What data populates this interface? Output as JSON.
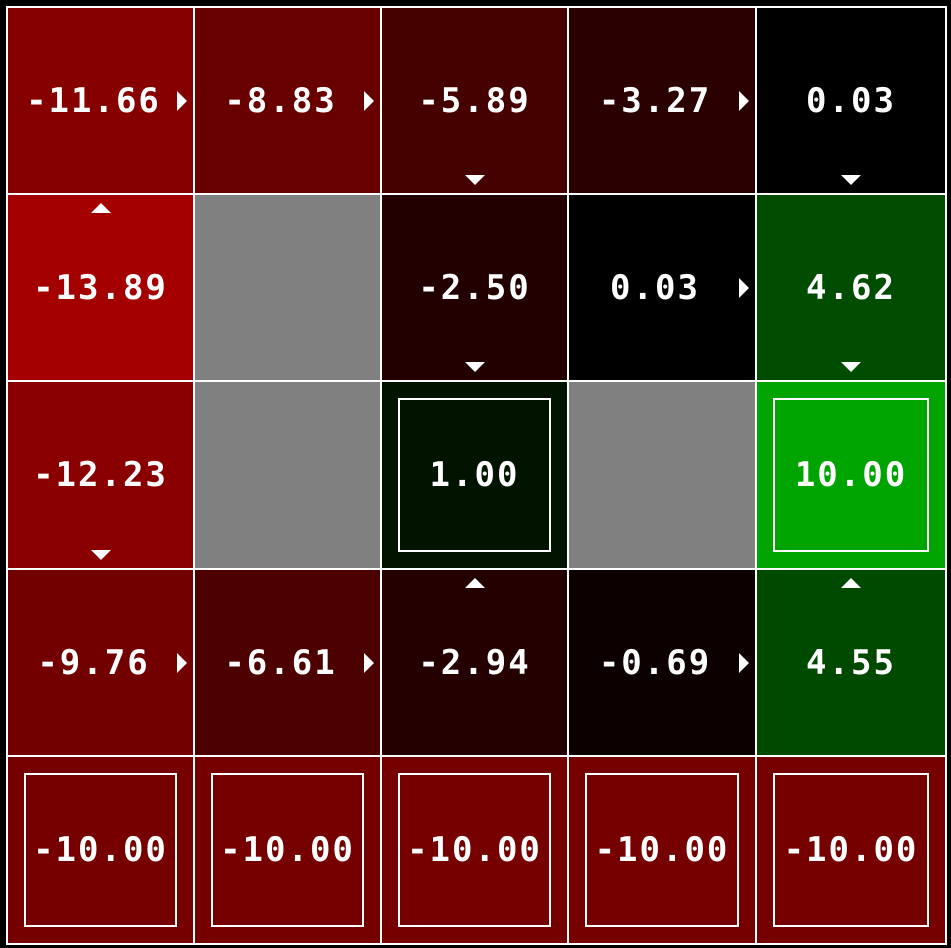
{
  "gridworld": {
    "rows": 5,
    "cols": 5,
    "cells": [
      [
        {
          "value": "-11.66",
          "color": "#870000",
          "arrow": "right",
          "wall": false,
          "terminal": false
        },
        {
          "value": "-8.83",
          "color": "#690000",
          "arrow": "right",
          "wall": false,
          "terminal": false
        },
        {
          "value": "-5.89",
          "color": "#450000",
          "arrow": "down",
          "wall": false,
          "terminal": false
        },
        {
          "value": "-3.27",
          "color": "#2a0000",
          "arrow": "right",
          "wall": false,
          "terminal": false
        },
        {
          "value": "0.03",
          "color": "#000000",
          "arrow": "down",
          "wall": false,
          "terminal": false
        }
      ],
      [
        {
          "value": "-13.89",
          "color": "#a40000",
          "arrow": "up",
          "wall": false,
          "terminal": false
        },
        {
          "value": "",
          "color": "#808080",
          "arrow": "",
          "wall": true,
          "terminal": false
        },
        {
          "value": "-2.50",
          "color": "#220000",
          "arrow": "down",
          "wall": false,
          "terminal": false
        },
        {
          "value": "0.03",
          "color": "#000000",
          "arrow": "right",
          "wall": false,
          "terminal": false
        },
        {
          "value": "4.62",
          "color": "#004c00",
          "arrow": "down",
          "wall": false,
          "terminal": false
        }
      ],
      [
        {
          "value": "-12.23",
          "color": "#8a0000",
          "arrow": "down",
          "wall": false,
          "terminal": false
        },
        {
          "value": "",
          "color": "#808080",
          "arrow": "",
          "wall": true,
          "terminal": false
        },
        {
          "value": "1.00",
          "color": "#001400",
          "arrow": "",
          "wall": false,
          "terminal": true
        },
        {
          "value": "",
          "color": "#808080",
          "arrow": "",
          "wall": true,
          "terminal": false
        },
        {
          "value": "10.00",
          "color": "#00a400",
          "arrow": "",
          "wall": false,
          "terminal": true
        }
      ],
      [
        {
          "value": "-9.76",
          "color": "#720000",
          "arrow": "right",
          "wall": false,
          "terminal": false
        },
        {
          "value": "-6.61",
          "color": "#4c0000",
          "arrow": "right",
          "wall": false,
          "terminal": false
        },
        {
          "value": "-2.94",
          "color": "#240000",
          "arrow": "up",
          "wall": false,
          "terminal": false
        },
        {
          "value": "-0.69",
          "color": "#0c0000",
          "arrow": "right",
          "wall": false,
          "terminal": false
        },
        {
          "value": "4.55",
          "color": "#004a00",
          "arrow": "up",
          "wall": false,
          "terminal": false
        }
      ],
      [
        {
          "value": "-10.00",
          "color": "#760000",
          "arrow": "",
          "wall": false,
          "terminal": true
        },
        {
          "value": "-10.00",
          "color": "#760000",
          "arrow": "",
          "wall": false,
          "terminal": true
        },
        {
          "value": "-10.00",
          "color": "#760000",
          "arrow": "",
          "wall": false,
          "terminal": true
        },
        {
          "value": "-10.00",
          "color": "#760000",
          "arrow": "",
          "wall": false,
          "terminal": true
        },
        {
          "value": "-10.00",
          "color": "#760000",
          "arrow": "",
          "wall": false,
          "terminal": true
        }
      ]
    ]
  }
}
